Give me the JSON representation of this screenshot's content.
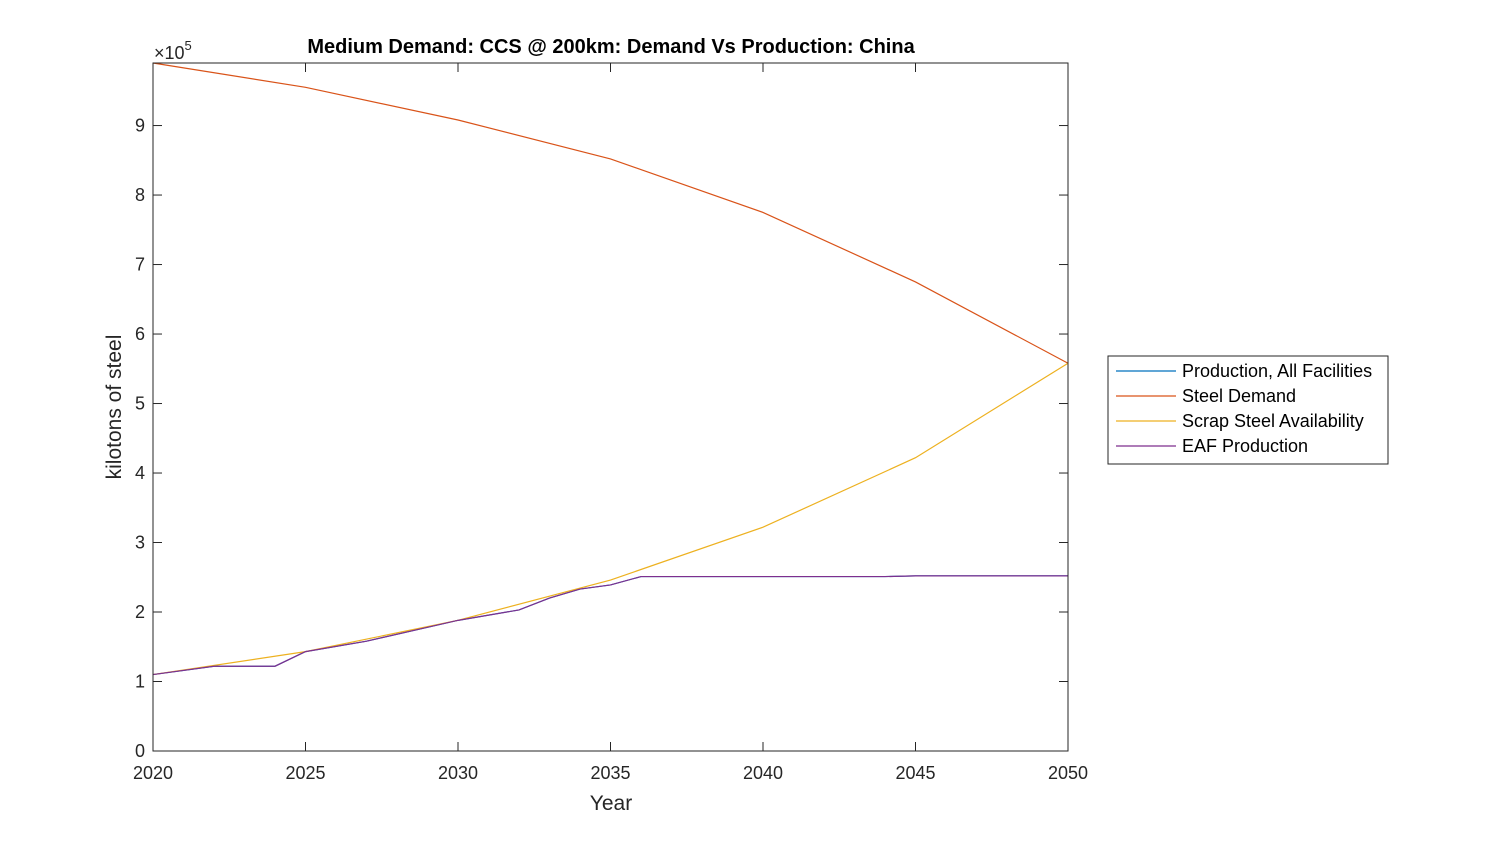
{
  "chart_data": {
    "type": "line",
    "title": "Medium Demand: CCS @ 200km: Demand Vs Production: China",
    "xlabel": "Year",
    "ylabel": "kilotons of steel",
    "y_exponent_base": "×10",
    "y_exponent_power": "5",
    "xlim": [
      2020,
      2050
    ],
    "ylim": [
      0,
      990000
    ],
    "xticks": [
      2020,
      2025,
      2030,
      2035,
      2040,
      2045,
      2050
    ],
    "yticks": [
      0,
      1,
      2,
      3,
      4,
      5,
      6,
      7,
      8,
      9
    ],
    "ytick_scale": 100000,
    "grid": false,
    "legend_position": "east-outside",
    "series": [
      {
        "name": "Production, All Facilities",
        "color": "#0072BD",
        "x": [
          2020,
          2022,
          2024,
          2025,
          2027,
          2030,
          2032,
          2033,
          2034,
          2035,
          2036,
          2040,
          2044,
          2045,
          2050
        ],
        "y": [
          110000,
          122000,
          122000,
          143000,
          158000,
          188000,
          203000,
          220000,
          233000,
          239000,
          251000,
          251000,
          251000,
          252000,
          252000
        ]
      },
      {
        "name": "Steel Demand",
        "color": "#D95319",
        "x": [
          2020,
          2025,
          2030,
          2035,
          2040,
          2045,
          2050
        ],
        "y": [
          990000,
          955000,
          908000,
          852000,
          775000,
          675000,
          558000
        ]
      },
      {
        "name": "Scrap Steel Availability",
        "color": "#EDB120",
        "x": [
          2020,
          2025,
          2030,
          2035,
          2040,
          2045,
          2050
        ],
        "y": [
          110000,
          143000,
          188000,
          246000,
          322000,
          422000,
          558000
        ]
      },
      {
        "name": "EAF Production",
        "color": "#7E2F8E",
        "x": [
          2020,
          2022,
          2024,
          2025,
          2027,
          2030,
          2032,
          2033,
          2034,
          2035,
          2036,
          2040,
          2044,
          2045,
          2050
        ],
        "y": [
          110000,
          122000,
          122000,
          143000,
          158000,
          188000,
          203000,
          220000,
          233000,
          239000,
          251000,
          251000,
          251000,
          252000,
          252000
        ]
      }
    ]
  }
}
